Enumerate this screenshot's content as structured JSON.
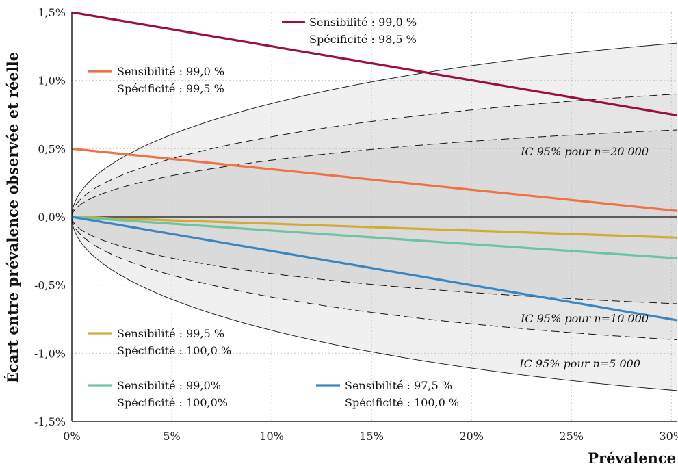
{
  "chart_data": {
    "type": "line",
    "xlabel": "Prévalence",
    "ylabel": "Écart entre prévalence observée et réelle",
    "xlim": [
      0,
      0.303
    ],
    "ylim": [
      -0.015,
      0.015
    ],
    "x_ticks": [
      {
        "value": 0,
        "label": "0%"
      },
      {
        "value": 0.05,
        "label": "5%"
      },
      {
        "value": 0.1,
        "label": "10%"
      },
      {
        "value": 0.15,
        "label": "15%"
      },
      {
        "value": 0.2,
        "label": "20%"
      },
      {
        "value": 0.25,
        "label": "25%"
      },
      {
        "value": 0.3,
        "label": "30%"
      }
    ],
    "y_ticks": [
      {
        "value": 0.015,
        "label": "1,5%"
      },
      {
        "value": 0.01,
        "label": "1,0%"
      },
      {
        "value": 0.005,
        "label": "0,5%"
      },
      {
        "value": 0.0,
        "label": "0,0%"
      },
      {
        "value": -0.005,
        "label": "-0,5%"
      },
      {
        "value": -0.01,
        "label": "-1,0%"
      },
      {
        "value": -0.015,
        "label": "-1,5%"
      }
    ],
    "grid": true,
    "series": [
      {
        "color": "#9b1040",
        "legend": [
          "Sensibilité : 99,0 %",
          "Spécificité : 98,5 %"
        ],
        "x": [
          0,
          0.303
        ],
        "y": [
          0.015,
          0.00745
        ]
      },
      {
        "color": "#ef7146",
        "legend": [
          "Sensibilité : 99,0 %",
          "Spécificité : 99,5 %"
        ],
        "x": [
          0,
          0.303
        ],
        "y": [
          0.005,
          0.00044
        ]
      },
      {
        "color": "#d0ab38",
        "legend": [
          "Sensibilité : 99,5 %",
          "Spécificité : 100,0 %"
        ],
        "x": [
          0,
          0.303
        ],
        "y": [
          0,
          -0.00152
        ]
      },
      {
        "color": "#6cc5a0",
        "legend": [
          "Sensibilité : 99,0%",
          "Spécificité : 100,0%"
        ],
        "x": [
          0,
          0.303
        ],
        "y": [
          0,
          -0.00303
        ]
      },
      {
        "color": "#3b86c1",
        "legend": [
          "Sensibilité : 97,5 %",
          "Spécificité : 100,0 %"
        ],
        "x": [
          0,
          0.303
        ],
        "y": [
          0,
          -0.00758
        ]
      }
    ],
    "confidence_bands": [
      {
        "label": "IC 95% pour n=5 000",
        "n": 5000,
        "line": "solid"
      },
      {
        "label": "IC 95% pour n=10 000",
        "n": 10000,
        "line": "dashed"
      },
      {
        "label": "IC 95% pour n=20 000",
        "n": 20000,
        "line": "dashed"
      }
    ]
  }
}
